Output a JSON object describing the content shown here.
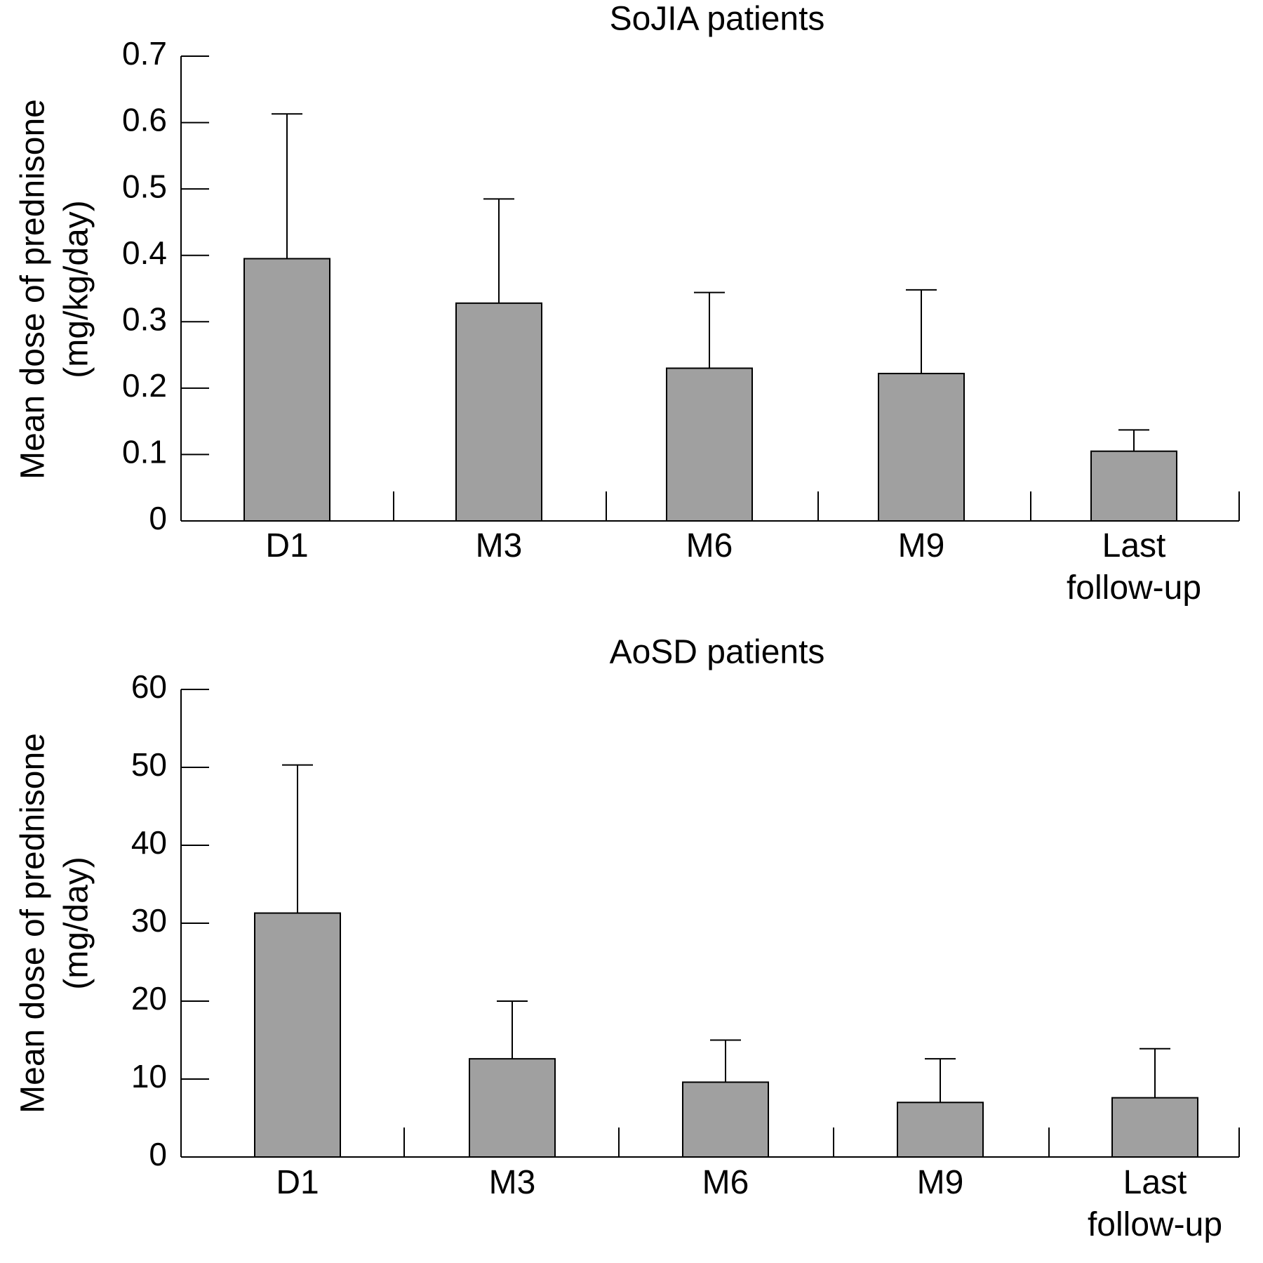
{
  "chart_data": [
    {
      "type": "bar",
      "title": "SoJIA patients",
      "ylabel_line1": "Mean dose of prednisone",
      "ylabel_line2": "(mg/kg/day)",
      "categories": [
        "D1",
        "M3",
        "M6",
        "M9",
        "Last follow-up"
      ],
      "category_lines": [
        [
          "D1"
        ],
        [
          "M3"
        ],
        [
          "M6"
        ],
        [
          "M9"
        ],
        [
          "Last",
          "follow-up"
        ]
      ],
      "values": [
        0.395,
        0.328,
        0.23,
        0.222,
        0.105
      ],
      "error_upper": [
        0.613,
        0.485,
        0.344,
        0.348,
        0.137
      ],
      "ylim": [
        0,
        0.7
      ],
      "yticks": [
        0,
        0.1,
        0.2,
        0.3,
        0.4,
        0.5,
        0.6,
        0.7
      ],
      "ytick_labels": [
        "0",
        "0.1",
        "0.2",
        "0.3",
        "0.4",
        "0.5",
        "0.6",
        "0.7"
      ],
      "bar_color": "#a0a0a0"
    },
    {
      "type": "bar",
      "title": "AoSD patients",
      "ylabel_line1": "Mean dose of prednisone",
      "ylabel_line2": "(mg/day)",
      "categories": [
        "D1",
        "M3",
        "M6",
        "M9",
        "Last follow-up"
      ],
      "category_lines": [
        [
          "D1"
        ],
        [
          "M3"
        ],
        [
          "M6"
        ],
        [
          "M9"
        ],
        [
          "Last",
          "follow-up"
        ]
      ],
      "values": [
        31.3,
        12.6,
        9.6,
        7.0,
        7.6
      ],
      "error_upper": [
        50.3,
        20.0,
        15.0,
        12.6,
        13.9
      ],
      "ylim": [
        0,
        60
      ],
      "yticks": [
        0,
        10,
        20,
        30,
        40,
        50,
        60
      ],
      "ytick_labels": [
        "0",
        "10",
        "20",
        "30",
        "40",
        "50",
        "60"
      ],
      "bar_color": "#a0a0a0"
    }
  ]
}
